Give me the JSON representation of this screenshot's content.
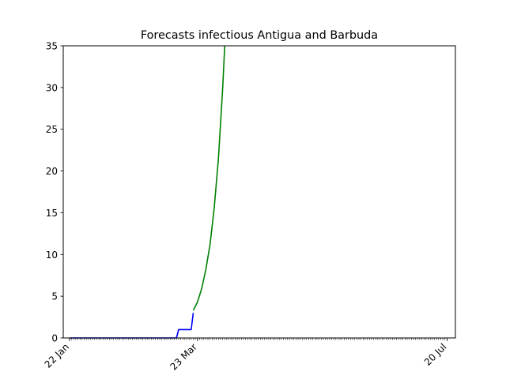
{
  "chart_data": {
    "type": "line",
    "title": "Forecasts infectious Antigua and Barbuda",
    "xlabel": "",
    "ylabel": "",
    "x_start": "2020-01-22",
    "x_end": "2020-07-20",
    "xlim": [
      "2020-01-19",
      "2020-07-24"
    ],
    "ylim": [
      0,
      35
    ],
    "yticks": [
      0,
      5,
      10,
      15,
      20,
      25,
      30,
      35
    ],
    "xtick_labels": [
      {
        "date": "2020-01-22",
        "label": "22 Jan"
      },
      {
        "date": "2020-03-23",
        "label": "23 Mar"
      },
      {
        "date": "2020-07-20",
        "label": "20 Jul"
      }
    ],
    "minor_ticks": "daily",
    "grid": false,
    "legend": "none",
    "series": [
      {
        "color": "#0000ff",
        "points": [
          {
            "x": "2020-01-22",
            "y": 0
          },
          {
            "x": "2020-03-13",
            "y": 0
          },
          {
            "x": "2020-03-14",
            "y": 1
          },
          {
            "x": "2020-03-20",
            "y": 1
          },
          {
            "x": "2020-03-21",
            "y": 3
          }
        ]
      },
      {
        "color": "#008000",
        "points": [
          {
            "x": "2020-03-21",
            "y": 3.3
          },
          {
            "x": "2020-03-23",
            "y": 4.3
          },
          {
            "x": "2020-03-25",
            "y": 5.9
          },
          {
            "x": "2020-03-27",
            "y": 8.2
          },
          {
            "x": "2020-03-29",
            "y": 11.2
          },
          {
            "x": "2020-03-31",
            "y": 15.6
          },
          {
            "x": "2020-04-02",
            "y": 21.5
          },
          {
            "x": "2020-04-04",
            "y": 29.8
          },
          {
            "x": "2020-04-05",
            "y": 35
          }
        ]
      }
    ]
  }
}
